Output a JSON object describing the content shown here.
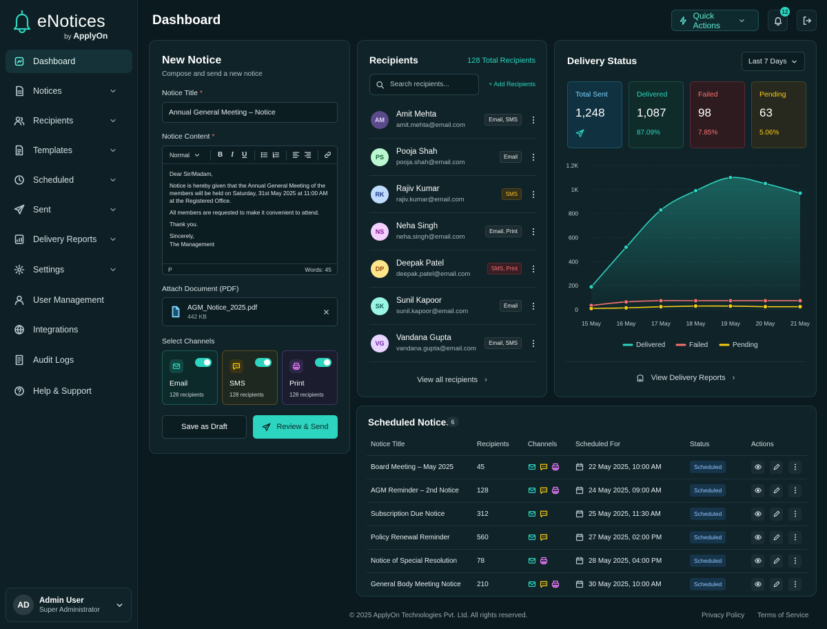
{
  "brand": {
    "name": "eNotices",
    "by": "by",
    "company": "ApplyOn"
  },
  "nav": [
    {
      "label": "Dashboard",
      "icon": "dashboard-icon",
      "active": true,
      "chevron": false
    },
    {
      "label": "Notices",
      "icon": "notices-icon",
      "chevron": true
    },
    {
      "label": "Recipients",
      "icon": "users-icon",
      "chevron": true
    },
    {
      "label": "Templates",
      "icon": "templates-icon",
      "chevron": true
    },
    {
      "label": "Scheduled",
      "icon": "clock-icon",
      "chevron": true
    },
    {
      "label": "Sent",
      "icon": "send-icon",
      "chevron": true
    },
    {
      "label": "Delivery Reports",
      "icon": "reports-icon",
      "chevron": true
    },
    {
      "label": "Settings",
      "icon": "gear-icon",
      "chevron": true
    },
    {
      "label": "User Management",
      "icon": "user-icon",
      "chevron": false
    },
    {
      "label": "Integrations",
      "icon": "integrations-icon",
      "chevron": false
    },
    {
      "label": "Audit Logs",
      "icon": "audit-icon",
      "chevron": false
    },
    {
      "label": "Help & Support",
      "icon": "help-icon",
      "chevron": false
    }
  ],
  "user": {
    "initials": "AD",
    "name": "Admin User",
    "role": "Super Administrator"
  },
  "header": {
    "title": "Dashboard",
    "quick_actions": "Quick Actions",
    "notification_count": "12"
  },
  "new_notice": {
    "title": "New Notice",
    "subtitle": "Compose and send a new notice",
    "title_label": "Notice Title",
    "title_value": "Annual General Meeting – Notice",
    "content_label": "Notice Content",
    "required_mark": "*",
    "format_select": "Normal",
    "body": {
      "p1": "Dear Sir/Madam,",
      "p2": "Notice is hereby given that the Annual General Meeting of the members will be held on Saturday, 31st May 2025 at 11:00 AM at the Registered Office.",
      "p3": "All members are requested to make it convenient to attend.",
      "p4": "Thank you.",
      "p5a": "Sincerely,",
      "p5b": "The Management"
    },
    "path": "P",
    "words": "Words: 45",
    "attach_label": "Attach Document (PDF)",
    "attachment": {
      "name": "AGM_Notice_2025.pdf",
      "size": "442 KB"
    },
    "channels_label": "Select Channels",
    "channels": [
      {
        "name": "Email",
        "count": "128 recipients",
        "enabled": true
      },
      {
        "name": "SMS",
        "count": "128 recipients",
        "enabled": true
      },
      {
        "name": "Print",
        "count": "128 recipients",
        "enabled": true
      }
    ],
    "draft_button": "Save as Draft",
    "send_button": "Review & Send"
  },
  "recipients": {
    "title": "Recipients",
    "total": "128 Total Recipients",
    "search_placeholder": "Search recipients...",
    "add": "+ Add Recipients",
    "view_all": "View all recipients",
    "list": [
      {
        "initials": "AM",
        "name": "Amit Mehta",
        "email": "amit.mehta@email.com",
        "channels": "Email, SMS",
        "avatar_bg": "#5b4a8a",
        "avatar_fg": "#ddd6fe",
        "tag": "default"
      },
      {
        "initials": "PS",
        "name": "Pooja Shah",
        "email": "pooja.shah@email.com",
        "channels": "Email",
        "avatar_bg": "#bbf7d0",
        "avatar_fg": "#166534",
        "tag": "default"
      },
      {
        "initials": "RK",
        "name": "Rajiv Kumar",
        "email": "rajiv.kumar@email.com",
        "channels": "SMS",
        "avatar_bg": "#bfdbfe",
        "avatar_fg": "#1e3a8a",
        "tag": "sms"
      },
      {
        "initials": "NS",
        "name": "Neha Singh",
        "email": "neha.singh@email.com",
        "channels": "Email, Print",
        "avatar_bg": "#f5d0fe",
        "avatar_fg": "#86198f",
        "tag": "default"
      },
      {
        "initials": "DP",
        "name": "Deepak Patel",
        "email": "deepak.patel@email.com",
        "channels": "SMS, Print",
        "avatar_bg": "#fde68a",
        "avatar_fg": "#92400e",
        "tag": "sms-print"
      },
      {
        "initials": "SK",
        "name": "Sunil Kapoor",
        "email": "sunil.kapoor@email.com",
        "channels": "Email",
        "avatar_bg": "#99f6e4",
        "avatar_fg": "#115e59",
        "tag": "default"
      },
      {
        "initials": "VG",
        "name": "Vandana Gupta",
        "email": "vandana.gupta@email.com",
        "channels": "Email, SMS",
        "avatar_bg": "#e9d5ff",
        "avatar_fg": "#6b21a8",
        "tag": "default"
      }
    ]
  },
  "delivery": {
    "title": "Delivery Status",
    "range": "Last 7 Days",
    "stats": {
      "total": {
        "label": "Total Sent",
        "value": "1,248"
      },
      "delivered": {
        "label": "Delivered",
        "value": "1,087",
        "pct": "87.09%"
      },
      "failed": {
        "label": "Failed",
        "value": "98",
        "pct": "7.85%"
      },
      "pending": {
        "label": "Pending",
        "value": "63",
        "pct": "5.06%"
      }
    },
    "link": "View Delivery Reports"
  },
  "chart_data": {
    "type": "line",
    "x": [
      "15 May",
      "16 May",
      "17 May",
      "18 May",
      "19 May",
      "20 May",
      "21 May"
    ],
    "ylim": [
      0,
      1200
    ],
    "yticks": [
      0,
      200,
      400,
      600,
      800,
      1000,
      1200
    ],
    "ytick_labels": [
      "0",
      "200",
      "400",
      "600",
      "800",
      "1K",
      "1.2K"
    ],
    "legend_position": "bottom",
    "grid": true,
    "series": [
      {
        "name": "Delivered",
        "color": "#2dd4bf",
        "values": [
          190,
          520,
          830,
          990,
          1100,
          1050,
          970
        ],
        "area": true
      },
      {
        "name": "Failed",
        "color": "#f87171",
        "values": [
          35,
          65,
          75,
          75,
          75,
          75,
          75
        ]
      },
      {
        "name": "Pending",
        "color": "#facc15",
        "values": [
          10,
          15,
          25,
          30,
          30,
          25,
          25
        ]
      }
    ]
  },
  "scheduled": {
    "title": "Scheduled Notices",
    "count": "6",
    "columns": [
      "Notice Title",
      "Recipients",
      "Channels",
      "Scheduled For",
      "Status",
      "Actions"
    ],
    "rows": [
      {
        "title": "Board Meeting – May 2025",
        "recipients": "45",
        "channels": [
          "email",
          "sms",
          "print"
        ],
        "date": "22 May 2025, 10:00 AM",
        "status": "Scheduled"
      },
      {
        "title": "AGM Reminder – 2nd Notice",
        "recipients": "128",
        "channels": [
          "email",
          "sms",
          "print"
        ],
        "date": "24 May 2025, 09:00 AM",
        "status": "Scheduled"
      },
      {
        "title": "Subscription Due Notice",
        "recipients": "312",
        "channels": [
          "email",
          "sms"
        ],
        "date": "25 May 2025, 11:30 AM",
        "status": "Scheduled"
      },
      {
        "title": "Policy Renewal Reminder",
        "recipients": "560",
        "channels": [
          "email",
          "sms"
        ],
        "date": "27 May 2025, 02:00 PM",
        "status": "Scheduled"
      },
      {
        "title": "Notice of Special Resolution",
        "recipients": "78",
        "channels": [
          "email",
          "print"
        ],
        "date": "28 May 2025, 04:00 PM",
        "status": "Scheduled"
      },
      {
        "title": "General Body Meeting Notice",
        "recipients": "210",
        "channels": [
          "email",
          "sms",
          "print"
        ],
        "date": "30 May 2025, 10:00 AM",
        "status": "Scheduled"
      }
    ]
  },
  "footer": {
    "copyright": "© 2025 ApplyOn Technologies Pvt. Ltd. All rights reserved.",
    "privacy": "Privacy Policy",
    "terms": "Terms of Service"
  }
}
